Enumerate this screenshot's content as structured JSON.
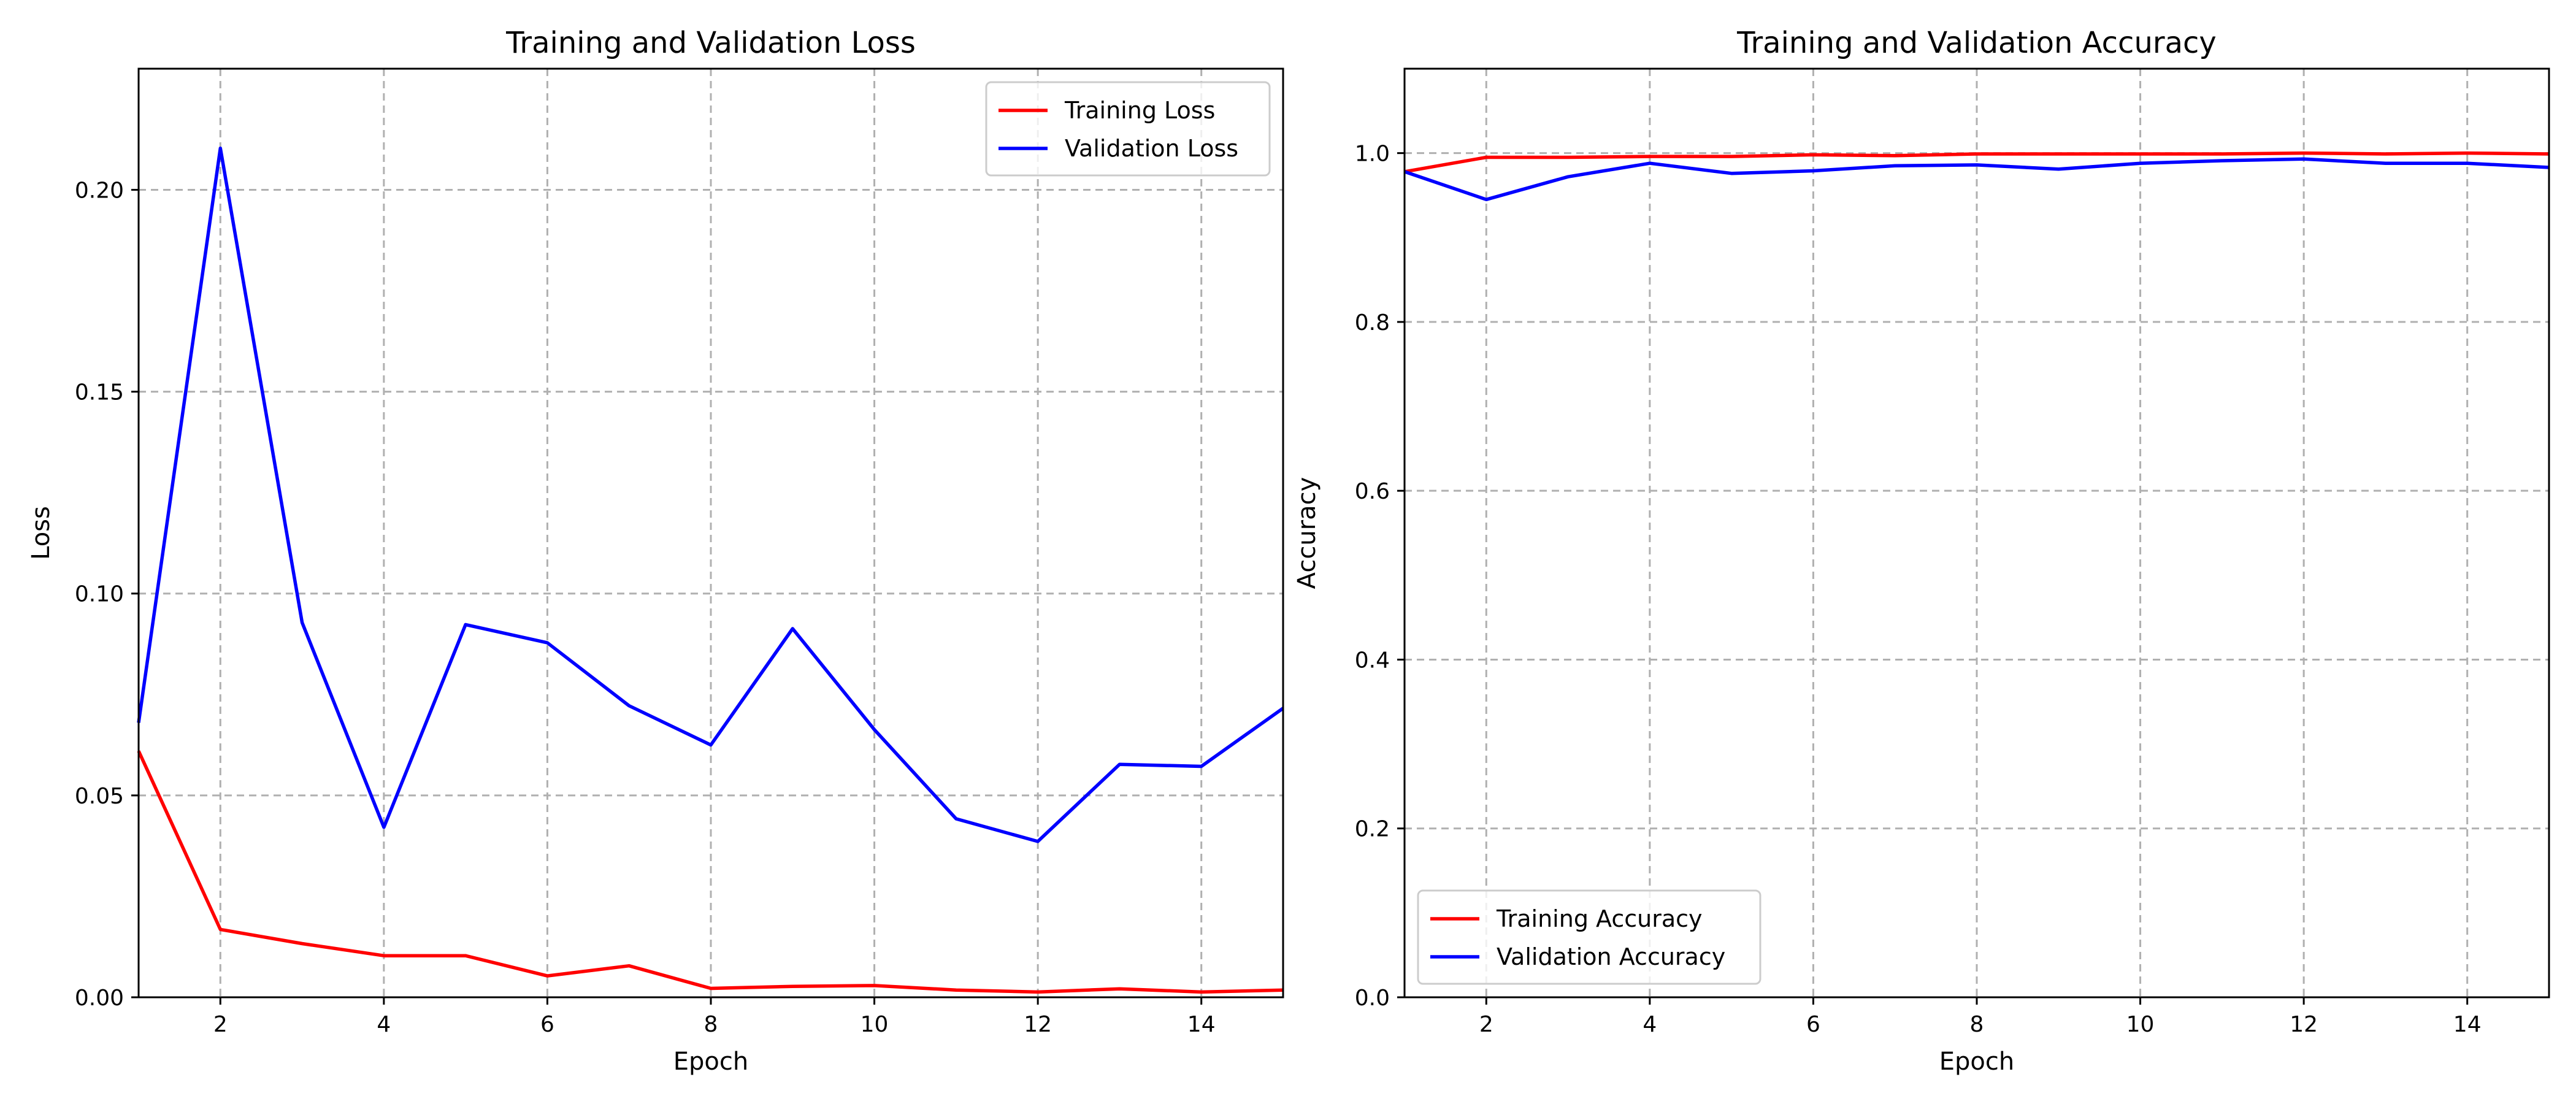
{
  "chart_data": [
    {
      "type": "line",
      "title": "Training and Validation Loss",
      "xlabel": "Epoch",
      "ylabel": "Loss",
      "xlim": [
        1,
        15
      ],
      "ylim": [
        0,
        0.23
      ],
      "xticks": [
        2,
        4,
        6,
        8,
        10,
        12,
        14
      ],
      "xtick_labels": [
        "2",
        "4",
        "6",
        "8",
        "10",
        "12",
        "14"
      ],
      "yticks": [
        0.0,
        0.05,
        0.1,
        0.15,
        0.2
      ],
      "ytick_labels": [
        "0.00",
        "0.05",
        "0.10",
        "0.15",
        "0.20"
      ],
      "grid": true,
      "legend_position": "upper right",
      "x": [
        1,
        2,
        3,
        4,
        5,
        6,
        7,
        8,
        9,
        10,
        11,
        12,
        13,
        14,
        15
      ],
      "series": [
        {
          "name": "Training Loss",
          "color": "#ff0000",
          "values": [
            0.061,
            0.0168,
            0.0133,
            0.0103,
            0.0103,
            0.0053,
            0.0078,
            0.0022,
            0.0027,
            0.0029,
            0.0018,
            0.0013,
            0.0021,
            0.0013,
            0.0018
          ]
        },
        {
          "name": "Validation Loss",
          "color": "#0000ff",
          "values": [
            0.068,
            0.2103,
            0.0928,
            0.0421,
            0.0923,
            0.0878,
            0.0722,
            0.0625,
            0.0913,
            0.0663,
            0.0442,
            0.0386,
            0.0577,
            0.0572,
            0.0716
          ]
        }
      ]
    },
    {
      "type": "line",
      "title": "Training and Validation Accuracy",
      "xlabel": "Epoch",
      "ylabel": "Accuracy",
      "xlim": [
        1,
        15
      ],
      "ylim": [
        0,
        1.1
      ],
      "xticks": [
        2,
        4,
        6,
        8,
        10,
        12,
        14
      ],
      "xtick_labels": [
        "2",
        "4",
        "6",
        "8",
        "10",
        "12",
        "14"
      ],
      "yticks": [
        0.0,
        0.2,
        0.4,
        0.6,
        0.8,
        1.0
      ],
      "ytick_labels": [
        "0.0",
        "0.2",
        "0.4",
        "0.6",
        "0.8",
        "1.0"
      ],
      "grid": true,
      "legend_position": "lower left",
      "x": [
        1,
        2,
        3,
        4,
        5,
        6,
        7,
        8,
        9,
        10,
        11,
        12,
        13,
        14,
        15
      ],
      "series": [
        {
          "name": "Training Accuracy",
          "color": "#ff0000",
          "values": [
            0.978,
            0.995,
            0.995,
            0.996,
            0.996,
            0.998,
            0.997,
            0.999,
            0.999,
            0.999,
            0.999,
            1.0,
            0.999,
            1.0,
            0.999
          ]
        },
        {
          "name": "Validation Accuracy",
          "color": "#0000ff",
          "values": [
            0.978,
            0.945,
            0.972,
            0.988,
            0.976,
            0.979,
            0.985,
            0.986,
            0.981,
            0.988,
            0.991,
            0.993,
            0.988,
            0.988,
            0.983
          ]
        }
      ]
    }
  ]
}
